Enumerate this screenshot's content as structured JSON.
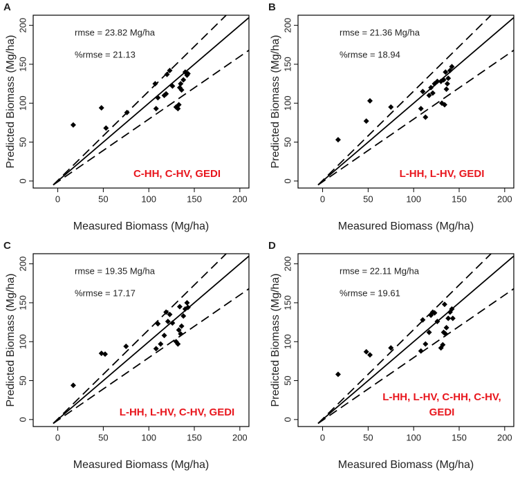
{
  "chart_data": [
    {
      "type": "scatter",
      "panel_label": "A",
      "xlabel": "Measured Biomass (Mg/ha)",
      "ylabel": "Predicted Biomass (Mg/ha)",
      "annotations": [
        "rmse =  23.82 Mg/ha",
        "%rmse = 21.13"
      ],
      "model_label": [
        "C-HH, C-HV, GEDI"
      ],
      "xlim": [
        -27,
        210
      ],
      "ylim": [
        -9,
        213
      ],
      "xticks": [
        0,
        50,
        100,
        150,
        200
      ],
      "yticks": [
        0,
        50,
        100,
        150,
        200
      ],
      "color": "#000000",
      "x": [
        17,
        48,
        53,
        76,
        107,
        108,
        110,
        117,
        119,
        120,
        123,
        126,
        130,
        132,
        133,
        134,
        135,
        136,
        138,
        140,
        142,
        143
      ],
      "y": [
        72,
        94,
        68,
        88,
        125,
        93,
        107,
        110,
        112,
        137,
        142,
        122,
        95,
        93,
        98,
        120,
        125,
        117,
        130,
        140,
        136,
        138
      ],
      "lines": [
        {
          "style": "solid",
          "x": [
            -5,
            210
          ],
          "y": [
            -5,
            210
          ]
        },
        {
          "style": "dashed",
          "x": [
            -5,
            185
          ],
          "y": [
            -5,
            213
          ]
        },
        {
          "style": "dashed",
          "x": [
            -5,
            210
          ],
          "y": [
            -5,
            168
          ]
        }
      ]
    },
    {
      "type": "scatter",
      "panel_label": "B",
      "xlabel": "Measured Biomass (Mg/ha)",
      "ylabel": "Predicted Biomass (Mg/ha)",
      "annotations": [
        "rmse =  21.36 Mg/ha",
        "%rmse = 18.94"
      ],
      "model_label": [
        "L-HH, L-HV, GEDI"
      ],
      "xlim": [
        -27,
        210
      ],
      "ylim": [
        -9,
        213
      ],
      "xticks": [
        0,
        50,
        100,
        150,
        200
      ],
      "yticks": [
        0,
        50,
        100,
        150,
        200
      ],
      "color": "#000000",
      "x": [
        17,
        48,
        52,
        75,
        108,
        110,
        113,
        117,
        119,
        121,
        123,
        126,
        130,
        131,
        133,
        134,
        135,
        136,
        137,
        138,
        140,
        142
      ],
      "y": [
        53,
        77,
        103,
        95,
        93,
        115,
        82,
        110,
        120,
        113,
        125,
        128,
        128,
        100,
        130,
        98,
        140,
        118,
        125,
        132,
        142,
        147
      ],
      "lines": [
        {
          "style": "solid",
          "x": [
            -5,
            210
          ],
          "y": [
            -5,
            210
          ]
        },
        {
          "style": "dashed",
          "x": [
            -5,
            185
          ],
          "y": [
            -5,
            213
          ]
        },
        {
          "style": "dashed",
          "x": [
            -5,
            210
          ],
          "y": [
            -5,
            168
          ]
        }
      ]
    },
    {
      "type": "scatter",
      "panel_label": "C",
      "xlabel": "Measured Biomass (Mg/ha)",
      "ylabel": "Predicted Biomass (Mg/ha)",
      "annotations": [
        "rmse =  19.35 Mg/ha",
        "%rmse = 17.17"
      ],
      "model_label": [
        "L-HH, L-HV, C-HV, GEDI"
      ],
      "xlim": [
        -27,
        210
      ],
      "ylim": [
        -9,
        213
      ],
      "xticks": [
        0,
        50,
        100,
        150,
        200
      ],
      "yticks": [
        0,
        50,
        100,
        150,
        200
      ],
      "color": "#000000",
      "x": [
        17,
        48,
        52,
        75,
        108,
        110,
        113,
        117,
        119,
        121,
        123,
        126,
        130,
        132,
        133,
        134,
        135,
        136,
        138,
        140,
        142,
        143
      ],
      "y": [
        44,
        85,
        84,
        94,
        91,
        123,
        97,
        108,
        138,
        126,
        135,
        124,
        100,
        97,
        115,
        145,
        110,
        120,
        133,
        142,
        150,
        144
      ],
      "lines": [
        {
          "style": "solid",
          "x": [
            -5,
            210
          ],
          "y": [
            -5,
            210
          ]
        },
        {
          "style": "dashed",
          "x": [
            -5,
            185
          ],
          "y": [
            -5,
            213
          ]
        },
        {
          "style": "dashed",
          "x": [
            -5,
            210
          ],
          "y": [
            -5,
            168
          ]
        }
      ]
    },
    {
      "type": "scatter",
      "panel_label": "D",
      "xlabel": "Measured Biomass (Mg/ha)",
      "ylabel": "Predicted Biomass (Mg/ha)",
      "annotations": [
        "rmse =  22.11 Mg/ha",
        "%rmse = 19.61"
      ],
      "model_label": [
        "L-HH, L-HV, C-HH, C-HV,",
        "GEDI"
      ],
      "xlim": [
        -27,
        210
      ],
      "ylim": [
        -9,
        213
      ],
      "xticks": [
        0,
        50,
        100,
        150,
        200
      ],
      "yticks": [
        0,
        50,
        100,
        150,
        200
      ],
      "color": "#000000",
      "x": [
        17,
        48,
        52,
        75,
        108,
        110,
        113,
        117,
        119,
        121,
        123,
        126,
        130,
        132,
        133,
        134,
        135,
        136,
        138,
        140,
        142,
        143
      ],
      "y": [
        58,
        87,
        83,
        92,
        88,
        128,
        97,
        112,
        134,
        138,
        137,
        126,
        92,
        96,
        112,
        148,
        110,
        118,
        130,
        138,
        142,
        130
      ],
      "lines": [
        {
          "style": "solid",
          "x": [
            -5,
            210
          ],
          "y": [
            -5,
            210
          ]
        },
        {
          "style": "dashed",
          "x": [
            -5,
            185
          ],
          "y": [
            -5,
            213
          ]
        },
        {
          "style": "dashed",
          "x": [
            -5,
            210
          ],
          "y": [
            -5,
            168
          ]
        }
      ]
    }
  ]
}
